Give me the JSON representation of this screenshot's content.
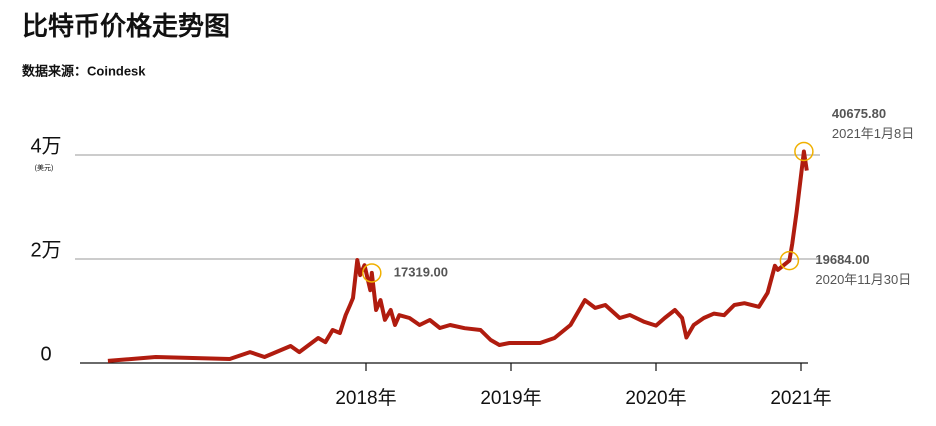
{
  "chart_data": {
    "type": "line",
    "title": "比特币价格走势图",
    "subtitle": "数据来源：Coindesk",
    "ylabel": "(美元)",
    "x": [
      2016.22,
      2016.55,
      2017.06,
      2017.2,
      2017.3,
      2017.48,
      2017.54,
      2017.67,
      2017.72,
      2017.77,
      2017.82,
      2017.86,
      2017.89,
      2017.91,
      2017.94,
      2017.96,
      2017.99,
      2018.03,
      2018.04,
      2018.07,
      2018.1,
      2018.13,
      2018.17,
      2018.2,
      2018.23,
      2018.3,
      2018.37,
      2018.44,
      2018.51,
      2018.58,
      2018.68,
      2018.79,
      2018.86,
      2018.92,
      2018.99,
      2019.2,
      2019.3,
      2019.41,
      2019.51,
      2019.58,
      2019.65,
      2019.75,
      2019.82,
      2019.92,
      2020.0,
      2020.06,
      2020.13,
      2020.18,
      2020.21,
      2020.26,
      2020.33,
      2020.4,
      2020.47,
      2020.54,
      2020.61,
      2020.71,
      2020.77,
      2020.82,
      2020.84,
      2020.92,
      2020.94,
      2020.97,
      2021.02,
      2021.04
    ],
    "series": [
      {
        "name": "比特币价格",
        "color": "#b01c0f",
        "values": [
          400,
          1150,
          770,
          2100,
          1150,
          3270,
          2100,
          4800,
          4000,
          6350,
          5770,
          9230,
          11150,
          12500,
          19800,
          16900,
          18800,
          14000,
          17319,
          10200,
          12100,
          8300,
          10200,
          7300,
          9200,
          8650,
          7300,
          8270,
          6730,
          7300,
          6700,
          6350,
          4420,
          3460,
          3850,
          3850,
          4800,
          7300,
          12100,
          10600,
          11150,
          8650,
          9230,
          7900,
          7200,
          8650,
          10200,
          8650,
          4900,
          7300,
          8650,
          9500,
          9200,
          11150,
          11500,
          10800,
          13500,
          18700,
          17900,
          19684,
          23000,
          29000,
          40675.8,
          37000
        ]
      }
    ],
    "annotations": [
      {
        "x": 2021.02,
        "value": 40675.8,
        "value_label": "40675.80",
        "date": "2021年1月8日"
      },
      {
        "x": 2020.92,
        "value": 19684,
        "value_label": "19684.00",
        "date": "2020年11月30日"
      },
      {
        "x": 2018.04,
        "value": 17319,
        "value_label": "17319.00"
      }
    ],
    "xlim": [
      2016,
      2021.15
    ],
    "ylim": [
      0,
      50000
    ],
    "xticks": [
      {
        "value": 2018,
        "label": "2018年"
      },
      {
        "value": 2019,
        "label": "2019年"
      },
      {
        "value": 2020,
        "label": "2020年"
      },
      {
        "value": 2021,
        "label": "2021年"
      }
    ],
    "yticks": [
      0,
      {
        "value": 20000,
        "label": "2万"
      },
      {
        "value": 40000,
        "label": "4万"
      }
    ],
    "grid": true,
    "annotation_color": "#f0b000"
  }
}
